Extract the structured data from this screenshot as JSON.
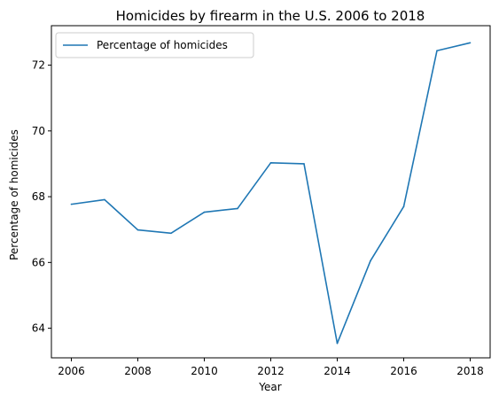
{
  "chart_data": {
    "type": "line",
    "title": "Homicides by firearm in the U.S. 2006 to 2018",
    "xlabel": "Year",
    "ylabel": "Percentage of homicides",
    "x": [
      2006,
      2007,
      2008,
      2009,
      2010,
      2011,
      2012,
      2013,
      2014,
      2015,
      2016,
      2017,
      2018
    ],
    "series": [
      {
        "name": "Percentage of homicides",
        "values": [
          67.77,
          67.91,
          66.99,
          66.89,
          67.53,
          67.64,
          69.03,
          69.0,
          63.54,
          66.05,
          67.7,
          72.44,
          72.68
        ],
        "color": "#1f77b4"
      }
    ],
    "xlim": [
      2005.4,
      2018.6
    ],
    "ylim": [
      63.1,
      73.2
    ],
    "xticks": [
      2006,
      2008,
      2010,
      2012,
      2014,
      2016,
      2018
    ],
    "xtick_labels": [
      "2006",
      "2008",
      "2010",
      "2012",
      "2014",
      "2016",
      "2018"
    ],
    "yticks": [
      64,
      66,
      68,
      70,
      72
    ],
    "ytick_labels": [
      "64",
      "66",
      "68",
      "70",
      "72"
    ],
    "grid": false,
    "legend": {
      "position": "top-left",
      "entries": [
        "Percentage of homicides"
      ]
    }
  }
}
